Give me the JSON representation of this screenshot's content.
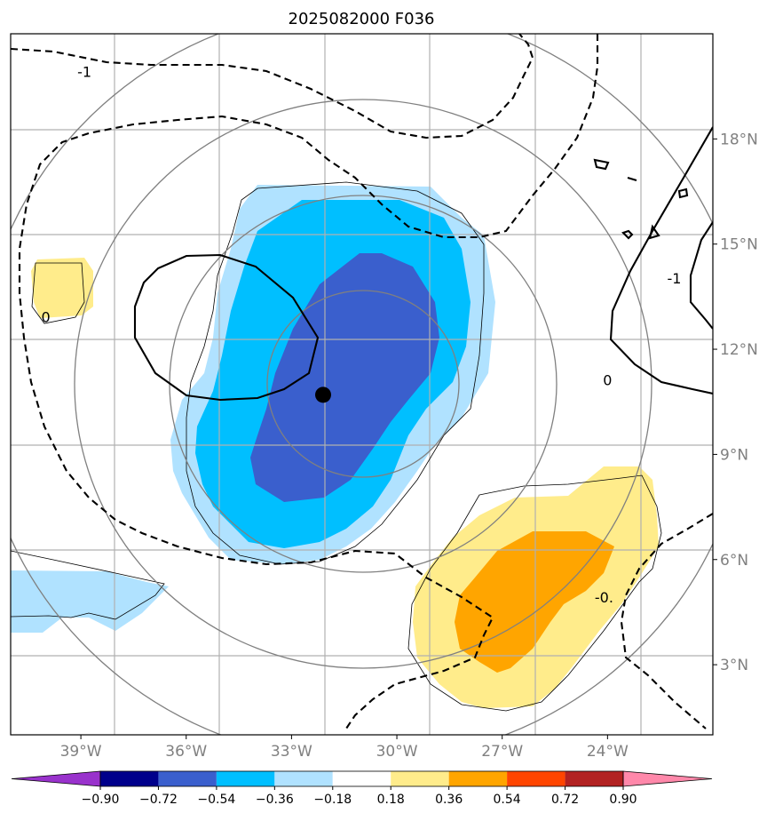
{
  "title": "2025082000 F036",
  "map": {
    "lon_range": [
      -41,
      -21
    ],
    "lat_range": [
      1,
      21
    ],
    "lon_ticks": [
      {
        "value": -39,
        "label": "39°W"
      },
      {
        "value": -36,
        "label": "36°W"
      },
      {
        "value": -33,
        "label": "33°W"
      },
      {
        "value": -30,
        "label": "30°W"
      },
      {
        "value": -27,
        "label": "27°W"
      },
      {
        "value": -24,
        "label": "24°W"
      }
    ],
    "lat_ticks": [
      {
        "value": 3,
        "label": "3°N"
      },
      {
        "value": 6,
        "label": "6°N"
      },
      {
        "value": 9,
        "label": "9°N"
      },
      {
        "value": 12,
        "label": "12°N"
      },
      {
        "value": 15,
        "label": "15°N"
      },
      {
        "value": 18,
        "label": "18°N"
      }
    ],
    "center_marker": {
      "lon": -32.1,
      "lat": 10.7
    },
    "contour_labels": [
      {
        "text": "-1",
        "lon": -38.9,
        "lat": 19.9
      },
      {
        "text": "0",
        "lon": -40.0,
        "lat": 12.9
      },
      {
        "text": "0",
        "lon": -24.0,
        "lat": 11.1
      },
      {
        "text": "-1",
        "lon": -22.1,
        "lat": 14.0
      },
      {
        "text": "-0.",
        "lon": -24.1,
        "lat": 4.9
      }
    ],
    "range_ring_color": "#808080",
    "grid_color": "#b0b0b0"
  },
  "colorbar": {
    "labels": [
      "−0.90",
      "−0.72",
      "−0.54",
      "−0.36",
      "−0.18",
      "0.18",
      "0.36",
      "0.54",
      "0.72",
      "0.90"
    ],
    "colors": [
      "#9932cc",
      "#00008b",
      "#3a5fcd",
      "#00bfff",
      "#b0e2ff",
      "#ffffff",
      "#ffec8b",
      "#ffa500",
      "#ff4500",
      "#b22222",
      "#ff88aa"
    ]
  }
}
